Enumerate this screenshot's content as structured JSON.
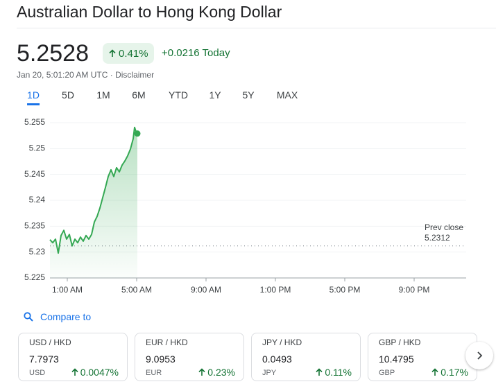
{
  "header": {
    "title": "Australian Dollar to Hong Kong Dollar",
    "price": "5.2528",
    "change_pct": "0.41%",
    "change_abs": "+0.0216",
    "change_period": "Today",
    "timestamp": "Jan 20, 5:01:20 AM UTC",
    "disclaimer": "Disclaimer"
  },
  "tabs": [
    "1D",
    "5D",
    "1M",
    "6M",
    "YTD",
    "1Y",
    "5Y",
    "MAX"
  ],
  "chart_data": {
    "type": "line",
    "x": [
      0,
      0.16,
      0.32,
      0.48,
      0.64,
      0.8,
      0.96,
      1.12,
      1.28,
      1.44,
      1.6,
      1.76,
      1.92,
      2.08,
      2.24,
      2.4,
      2.56,
      2.72,
      2.88,
      3.04,
      3.2,
      3.36,
      3.52,
      3.68,
      3.84,
      4.0,
      4.16,
      4.32,
      4.48,
      4.64,
      4.8,
      4.88,
      4.96,
      5.04
    ],
    "series": [
      {
        "name": "AUD/HKD",
        "color": "#34a853",
        "values": [
          5.2324,
          5.2318,
          5.2325,
          5.2298,
          5.2332,
          5.2342,
          5.2325,
          5.2334,
          5.2312,
          5.2325,
          5.2318,
          5.2329,
          5.2321,
          5.2332,
          5.2325,
          5.2334,
          5.2358,
          5.2369,
          5.2385,
          5.2405,
          5.2425,
          5.2446,
          5.2459,
          5.2446,
          5.2463,
          5.2455,
          5.2468,
          5.2476,
          5.2486,
          5.2499,
          5.2519,
          5.2541,
          5.2533,
          5.2529
        ]
      }
    ],
    "xlim": [
      0,
      24
    ],
    "xticks": [
      {
        "value": 1,
        "label": "1:00 AM"
      },
      {
        "value": 5,
        "label": "5:00 AM"
      },
      {
        "value": 9,
        "label": "9:00 AM"
      },
      {
        "value": 13,
        "label": "1:00 PM"
      },
      {
        "value": 17,
        "label": "5:00 PM"
      },
      {
        "value": 21,
        "label": "9:00 PM"
      }
    ],
    "ylim": [
      5.225,
      5.255
    ],
    "yticks": [
      5.225,
      5.23,
      5.235,
      5.24,
      5.245,
      5.25,
      5.255
    ],
    "grid": true,
    "prev_close_label": "Prev close",
    "prev_close": 5.2312
  },
  "compare": {
    "label": "Compare to",
    "cards": [
      {
        "pair": "USD / HKD",
        "price": "7.7973",
        "currency": "USD",
        "change": "0.0047%"
      },
      {
        "pair": "EUR / HKD",
        "price": "9.0953",
        "currency": "EUR",
        "change": "0.23%"
      },
      {
        "pair": "JPY / HKD",
        "price": "0.0493",
        "currency": "JPY",
        "change": "0.11%"
      },
      {
        "pair": "GBP / HKD",
        "price": "10.4795",
        "currency": "GBP",
        "change": "0.17%"
      }
    ]
  }
}
